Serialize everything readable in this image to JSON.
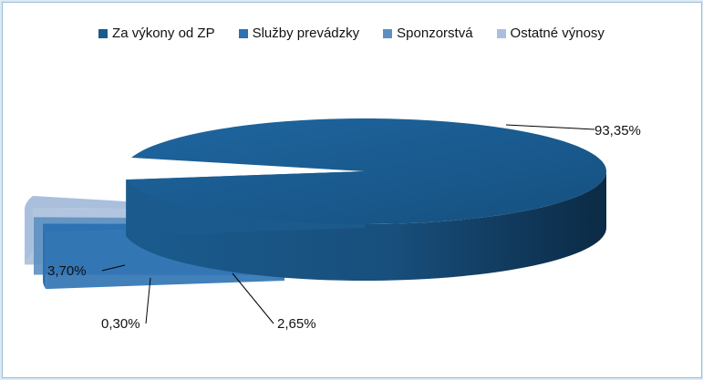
{
  "chart_data": {
    "type": "pie",
    "style": "3d-exploded",
    "title": "",
    "categories": [
      "Za výkony od ZP",
      "Služby prevádzky",
      "Sponzorstvá",
      "Ostatné výnosy"
    ],
    "values": [
      93.35,
      2.65,
      0.3,
      3.7
    ],
    "labels": [
      "93,35%",
      "2,65%",
      "0,30%",
      "3,70%"
    ],
    "colors": [
      "#1a5b8e",
      "#2d72b3",
      "#5d8fc0",
      "#a9bfdc"
    ],
    "legend_position": "top",
    "grid": false
  }
}
